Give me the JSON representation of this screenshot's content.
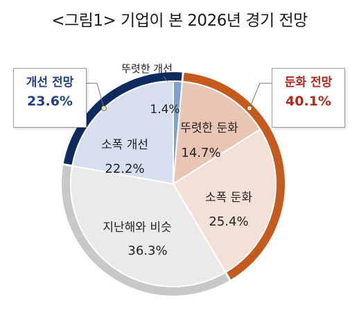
{
  "title": "<그림1> 기업이 본 2026년 경기 전망",
  "colors": {
    "ring_improve": "#0f2a5e",
    "ring_worse": "#c55a1c",
    "ring_same": "#c8c8c8",
    "slice_improve_large": "#d6dff0",
    "slice_improve_small": "#7f9fd6",
    "slice_worse": "#f3e0d6",
    "slice_worse_strong": "#e9c5b3",
    "slice_same": "#eaeaea",
    "improve_text": "#1f3f8f",
    "worse_text": "#b8261a"
  },
  "chart_data": {
    "type": "pie",
    "slices": [
      {
        "label": "뚜렷한 개선",
        "value": 1.4,
        "value_label": "1.4%",
        "group": "improve"
      },
      {
        "label": "뚜렷한 둔화",
        "value": 14.7,
        "value_label": "14.7%",
        "group": "worse"
      },
      {
        "label": "소폭 둔화",
        "value": 25.4,
        "value_label": "25.4%",
        "group": "worse"
      },
      {
        "label": "지난해와 비슷",
        "value": 36.3,
        "value_label": "36.3%",
        "group": "same"
      },
      {
        "label": "소폭 개선",
        "value": 22.2,
        "value_label": "22.2%",
        "group": "improve"
      }
    ],
    "groups": [
      {
        "id": "improve",
        "label": "개선 전망",
        "value": 23.6,
        "value_label": "23.6%"
      },
      {
        "id": "worse",
        "label": "둔화 전망",
        "value": 40.1,
        "value_label": "40.1%"
      },
      {
        "id": "same",
        "label": "",
        "value": 36.3
      }
    ]
  }
}
